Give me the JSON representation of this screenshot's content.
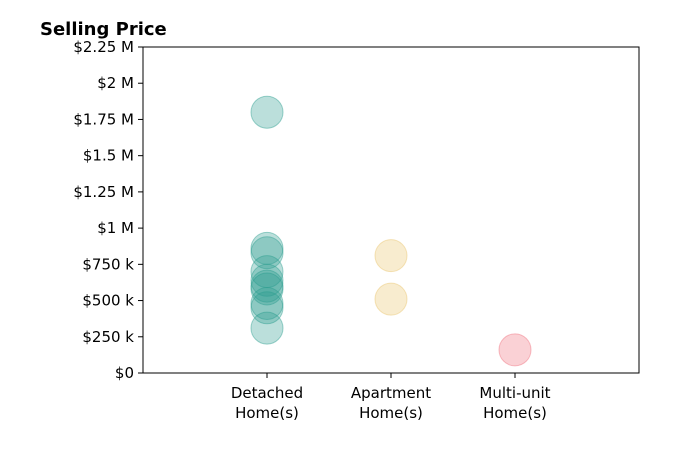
{
  "chart_data": {
    "type": "scatter",
    "title": "Selling Price",
    "xlabel": "",
    "ylabel": "",
    "categories": [
      [
        "Detached",
        "Home(s)"
      ],
      [
        "Apartment",
        "Home(s)"
      ],
      [
        "Multi-unit",
        "Home(s)"
      ]
    ],
    "ylim": [
      0,
      2250000
    ],
    "y_ticks": [
      {
        "value": 0,
        "label": "$0"
      },
      {
        "value": 250000,
        "label": "$250 k"
      },
      {
        "value": 500000,
        "label": "$500 k"
      },
      {
        "value": 750000,
        "label": "$750 k"
      },
      {
        "value": 1000000,
        "label": "$1 M"
      },
      {
        "value": 1250000,
        "label": "$1.25 M"
      },
      {
        "value": 1500000,
        "label": "$1.5 M"
      },
      {
        "value": 1750000,
        "label": "$1.75 M"
      },
      {
        "value": 2000000,
        "label": "$2 M"
      },
      {
        "value": 2250000,
        "label": "$2.25 M"
      }
    ],
    "grid": false,
    "legend": "none",
    "series": [
      {
        "category_index": 0,
        "color": "#2a9d8f",
        "values": [
          1800000,
          860000,
          830000,
          700000,
          640000,
          600000,
          580000,
          480000,
          450000,
          310000
        ]
      },
      {
        "category_index": 1,
        "color": "#e9c46a",
        "values": [
          810000,
          510000
        ]
      },
      {
        "category_index": 2,
        "color": "#ef6f7c",
        "values": [
          160000
        ]
      }
    ]
  }
}
